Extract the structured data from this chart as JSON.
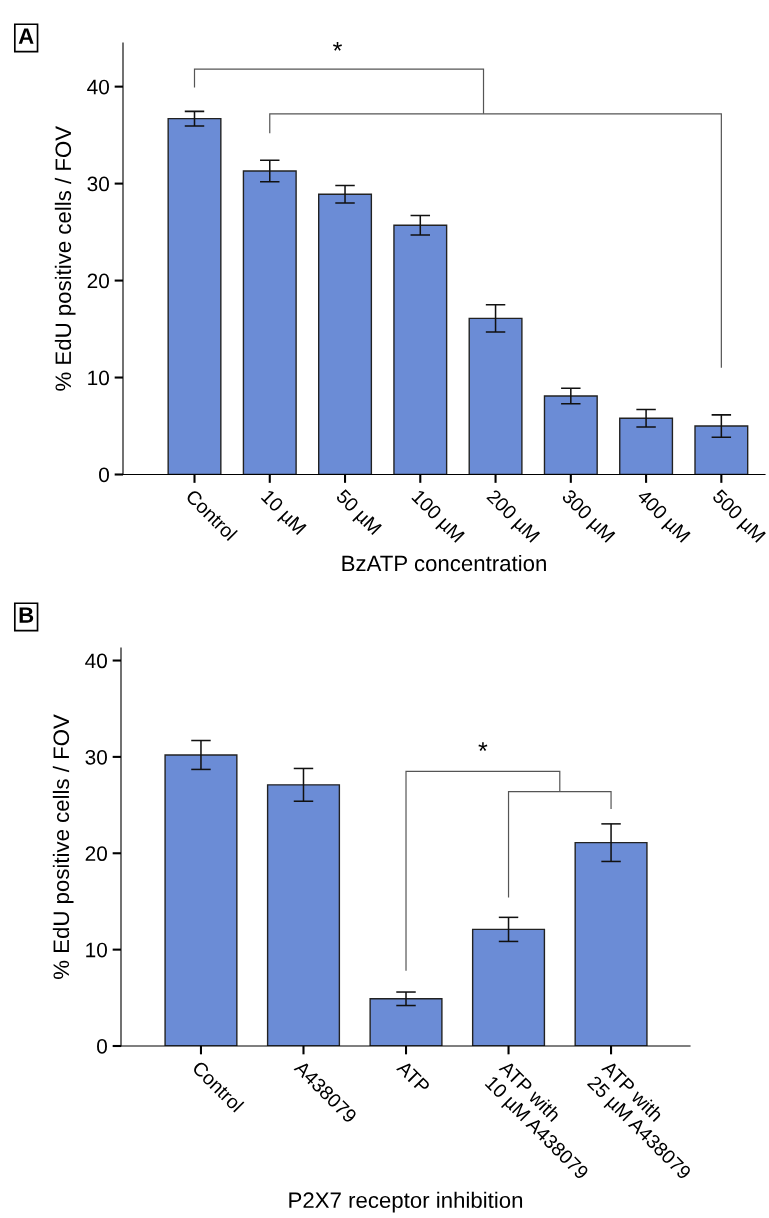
{
  "chart_data": [
    {
      "type": "bar",
      "title": "A",
      "xlabel": "BzATP concentration",
      "ylabel": "% EdU positive cells / FOV",
      "categories": [
        "Control",
        "10 µM",
        "50 µM",
        "100 µM",
        "200 µM",
        "300 µM",
        "400 µM",
        "500 µM"
      ],
      "values": [
        36.7,
        31.3,
        28.9,
        25.7,
        16.1,
        8.1,
        5.8,
        5.0
      ],
      "errors": [
        0.75,
        1.1,
        0.9,
        1.0,
        1.4,
        0.8,
        0.9,
        1.15
      ],
      "color": "#6b8cd6",
      "ylim": [
        0,
        44.5
      ],
      "yticks": [
        0,
        10,
        20,
        30,
        40
      ],
      "grid": false,
      "annotations": [
        "*"
      ]
    },
    {
      "type": "bar",
      "title": "B",
      "xlabel": "P2X7 receptor inhibition",
      "ylabel": "% EdU positive cells / FOV",
      "categories": [
        "Control",
        "A438079",
        "ATP",
        "ATP with\n10 µM A438079",
        "ATP with\n25 µM A438079"
      ],
      "values": [
        30.2,
        27.1,
        4.9,
        12.1,
        21.1
      ],
      "errors": [
        1.5,
        1.7,
        0.7,
        1.25,
        1.95
      ],
      "color": "#6b8cd6",
      "ylim": [
        0,
        41.3
      ],
      "yticks": [
        0,
        10,
        20,
        30,
        40
      ],
      "grid": false,
      "annotations": [
        "*"
      ]
    }
  ]
}
